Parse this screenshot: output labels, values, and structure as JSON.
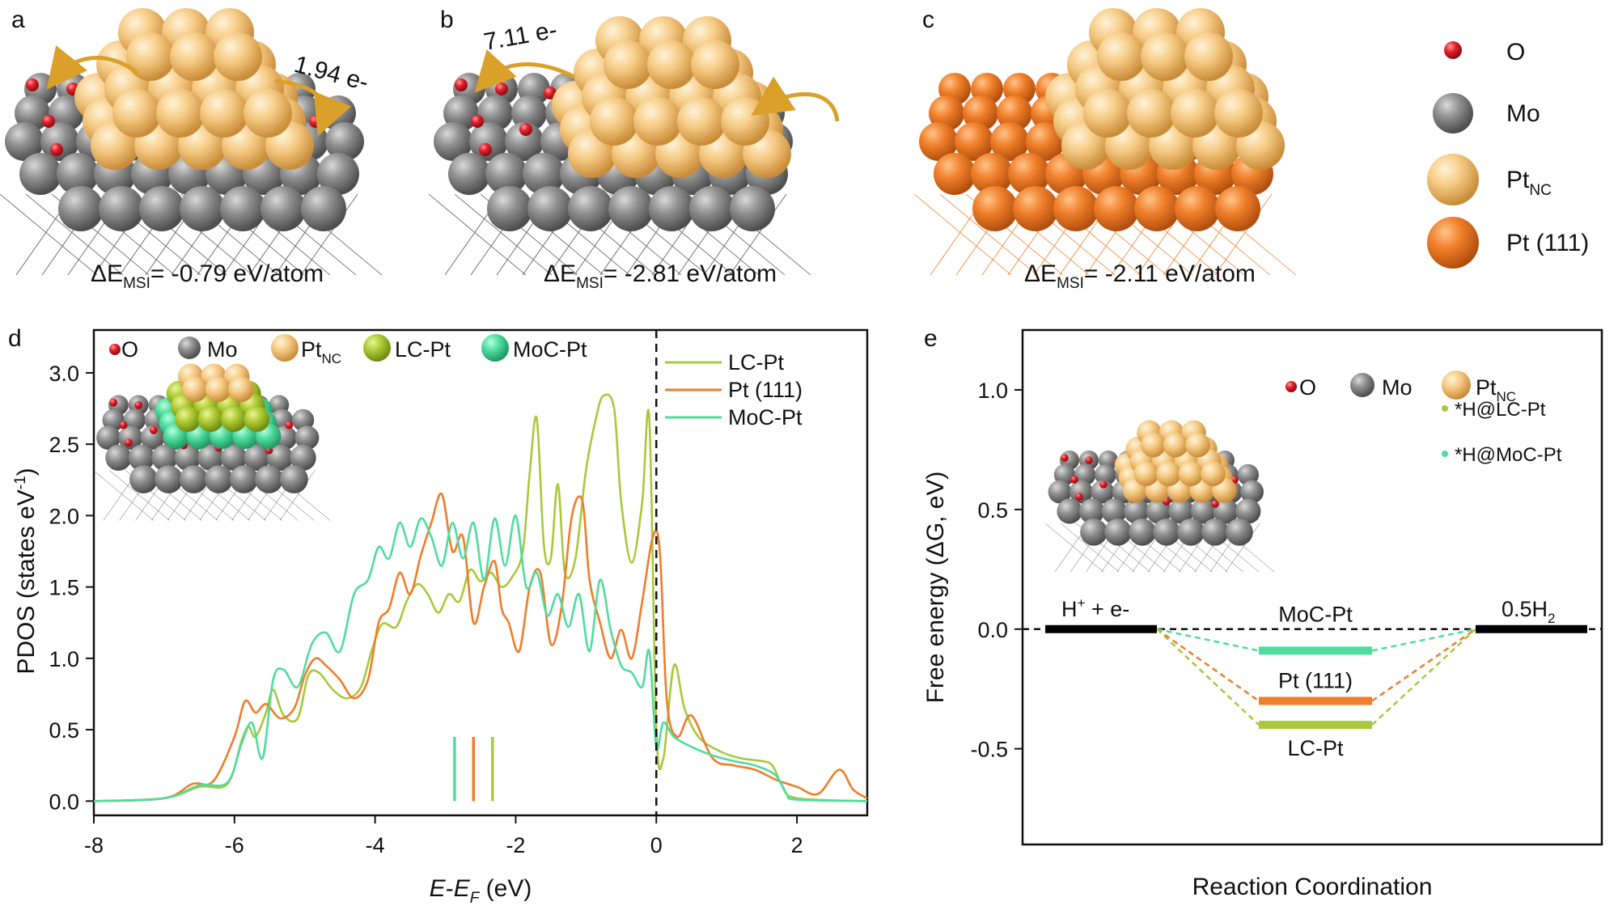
{
  "panels": {
    "a": {
      "letter": "a",
      "transfer": "1.94 e-",
      "energy": {
        "prefix": "ΔE",
        "sub": "MSI",
        "value": "= -0.79 eV/atom"
      }
    },
    "b": {
      "letter": "b",
      "transfer": "7.11 e-",
      "energy": {
        "prefix": "ΔE",
        "sub": "MSI",
        "value": "= -2.81 eV/atom"
      }
    },
    "c": {
      "letter": "c",
      "energy": {
        "prefix": "ΔE",
        "sub": "MSI",
        "value": "= -2.11 eV/atom"
      }
    },
    "d": {
      "letter": "d"
    },
    "e": {
      "letter": "e"
    }
  },
  "atom_legend": {
    "o": "O",
    "mo": "Mo",
    "ptnc": {
      "main": "Pt",
      "sub": "NC"
    },
    "pt111": "Pt (111)"
  },
  "colors": {
    "O": "#e0202a",
    "Mo": "#8c8c8c",
    "PtNC": "#f3c27a",
    "Pt111": "#ef7d28",
    "LC": "#a9c83a",
    "MoC": "#4fdc9e",
    "PtLine": "#ef7d2a"
  },
  "pdos_inset_legend": {
    "o": "O",
    "mo": "Mo",
    "ptnc": {
      "main": "Pt",
      "sub": "NC"
    },
    "lc": "LC-Pt",
    "moc": "MoC-Pt"
  },
  "energy_inset_legend": {
    "o": "O",
    "mo": "Mo",
    "ptnc": {
      "main": "Pt",
      "sub": "NC"
    },
    "h_lc": "*H@LC-Pt",
    "h_moc": "*H@MoC-Pt"
  },
  "chart_data": [
    {
      "type": "line",
      "title": "",
      "xlabel": "E-E_F (eV)",
      "xlabel_parts": {
        "e1": "E",
        "dash": "-",
        "e2": "E",
        "sub": "F",
        "unit": " (eV)"
      },
      "ylabel": "PDOS (states eV-1)",
      "ylabel_parts": {
        "main": "PDOS (states eV",
        "sup": "-1",
        "close": ")"
      },
      "xlim": [
        -8,
        3
      ],
      "ylim": [
        -0.1,
        3.3
      ],
      "xticks": [
        -8,
        -6,
        -4,
        -2,
        0,
        2
      ],
      "xtick_labels": [
        "-8",
        "-6",
        "-4",
        "-2",
        "0",
        "2"
      ],
      "yticks": [
        0,
        0.5,
        1,
        1.5,
        2,
        2.5,
        3
      ],
      "ytick_labels": [
        "0.0",
        "0.5",
        "1.0",
        "1.5",
        "2.0",
        "2.5",
        "3.0"
      ],
      "legend": [
        "LC-Pt",
        "Pt (111)",
        "MoC-Pt"
      ],
      "legend_position": "top-right",
      "fermi_level": 0,
      "d_band_centers": {
        "MoC-Pt": -2.87,
        "Pt (111)": -2.6,
        "LC-Pt": -2.33
      },
      "series": [
        {
          "name": "LC-Pt",
          "x": [
            -8,
            -7,
            -6.5,
            -6.1,
            -5.9,
            -5.8,
            -5.7,
            -5.55,
            -5.45,
            -5.3,
            -5.1,
            -4.95,
            -4.8,
            -4.6,
            -4.4,
            -4.2,
            -4.05,
            -3.9,
            -3.7,
            -3.55,
            -3.4,
            -3.25,
            -3.1,
            -2.95,
            -2.8,
            -2.65,
            -2.5,
            -2.35,
            -2.2,
            -2.05,
            -1.9,
            -1.8,
            -1.7,
            -1.6,
            -1.5,
            -1.4,
            -1.3,
            -1.15,
            -1.0,
            -0.85,
            -0.75,
            -0.6,
            -0.5,
            -0.35,
            -0.2,
            -0.1,
            0,
            0.1,
            0.25,
            0.4,
            0.6,
            0.9,
            1.2,
            1.5,
            1.65,
            1.8,
            2.0,
            3.0
          ],
          "y": [
            0,
            0.02,
            0.1,
            0.12,
            0.42,
            0.52,
            0.45,
            0.62,
            0.78,
            0.6,
            0.58,
            0.88,
            0.9,
            0.78,
            0.72,
            0.8,
            1.05,
            1.24,
            1.22,
            1.4,
            1.52,
            1.45,
            1.32,
            1.45,
            1.4,
            1.62,
            1.54,
            1.6,
            1.5,
            1.57,
            1.75,
            2.3,
            2.68,
            1.8,
            1.7,
            2.22,
            1.6,
            1.7,
            2.32,
            2.7,
            2.84,
            2.75,
            2.1,
            1.67,
            2.1,
            2.68,
            0.5,
            0.3,
            0.95,
            0.65,
            0.45,
            0.35,
            0.3,
            0.28,
            0.25,
            0.1,
            0.02,
            0
          ]
        },
        {
          "name": "Pt (111)",
          "x": [
            -8,
            -7,
            -6.6,
            -6.3,
            -6.0,
            -5.85,
            -5.7,
            -5.55,
            -5.35,
            -5.15,
            -5.0,
            -4.85,
            -4.7,
            -4.5,
            -4.3,
            -4.1,
            -3.95,
            -3.8,
            -3.65,
            -3.5,
            -3.35,
            -3.2,
            -3.05,
            -2.9,
            -2.75,
            -2.6,
            -2.45,
            -2.3,
            -2.2,
            -2.1,
            -1.95,
            -1.8,
            -1.65,
            -1.5,
            -1.35,
            -1.2,
            -1.05,
            -0.95,
            -0.8,
            -0.65,
            -0.5,
            -0.35,
            -0.2,
            -0.05,
            0.05,
            0.15,
            0.3,
            0.5,
            0.8,
            1.1,
            1.4,
            1.7,
            2.0,
            2.3,
            2.6,
            2.8,
            3.0
          ],
          "y": [
            0,
            0.02,
            0.12,
            0.14,
            0.45,
            0.7,
            0.62,
            0.68,
            0.58,
            0.65,
            0.88,
            1.0,
            0.95,
            0.85,
            0.72,
            0.85,
            1.25,
            1.35,
            1.6,
            1.45,
            1.72,
            1.95,
            2.15,
            1.75,
            1.85,
            1.25,
            1.5,
            1.68,
            1.35,
            1.25,
            1.05,
            1.5,
            1.6,
            1.1,
            1.35,
            2.0,
            2.1,
            1.55,
            1.25,
            1.0,
            1.2,
            1.0,
            1.4,
            1.85,
            1.75,
            0.7,
            0.45,
            0.6,
            0.3,
            0.25,
            0.22,
            0.15,
            0.1,
            0.05,
            0.22,
            0.08,
            0.02
          ]
        },
        {
          "name": "MoC-Pt",
          "x": [
            -8,
            -7,
            -6.5,
            -6.1,
            -5.9,
            -5.75,
            -5.6,
            -5.45,
            -5.3,
            -5.1,
            -4.9,
            -4.7,
            -4.5,
            -4.3,
            -4.1,
            -3.95,
            -3.8,
            -3.65,
            -3.5,
            -3.35,
            -3.2,
            -3.05,
            -2.9,
            -2.75,
            -2.6,
            -2.45,
            -2.3,
            -2.15,
            -2.0,
            -1.85,
            -1.7,
            -1.55,
            -1.4,
            -1.25,
            -1.1,
            -0.95,
            -0.8,
            -0.65,
            -0.5,
            -0.35,
            -0.2,
            -0.1,
            0,
            0.1,
            0.25,
            0.5,
            0.8,
            1.1,
            1.4,
            1.7,
            1.85,
            2.0,
            3.0
          ],
          "y": [
            0,
            0.02,
            0.11,
            0.13,
            0.4,
            0.55,
            0.3,
            0.85,
            0.92,
            0.8,
            1.1,
            1.18,
            1.05,
            1.45,
            1.55,
            1.78,
            1.7,
            1.95,
            1.78,
            1.98,
            1.85,
            1.65,
            1.95,
            1.7,
            1.95,
            1.55,
            1.98,
            1.65,
            2.0,
            1.5,
            1.6,
            1.3,
            1.45,
            1.22,
            1.45,
            1.05,
            1.55,
            1.2,
            0.95,
            0.9,
            0.8,
            1.05,
            0.38,
            0.55,
            0.45,
            0.38,
            0.32,
            0.28,
            0.25,
            0.18,
            0.05,
            0.01,
            0
          ]
        }
      ]
    },
    {
      "type": "line",
      "title": "",
      "xlabel": "Reaction Coordination",
      "ylabel": "Free energy (ΔG, eV)",
      "ylim": [
        -0.9,
        1.25
      ],
      "yticks": [
        -0.5,
        0,
        0.5,
        1.0
      ],
      "ytick_labels": [
        "-0.5",
        "0.0",
        "0.5",
        "1.0"
      ],
      "zero_line": 0,
      "states": [
        {
          "name": "H+ + e-",
          "label_main": "H",
          "label_sup": "+",
          "label_rest": " + e-",
          "value": 0.0
        },
        {
          "name": "MoC-Pt",
          "label": "MoC-Pt",
          "value": -0.09
        },
        {
          "name": "Pt (111)",
          "label": "Pt (111)",
          "value": -0.3
        },
        {
          "name": "LC-Pt",
          "label": "LC-Pt",
          "value": -0.4
        },
        {
          "name": "0.5H2",
          "label_main": "0.5H",
          "label_sub": "2",
          "value": 0.0
        }
      ]
    }
  ]
}
